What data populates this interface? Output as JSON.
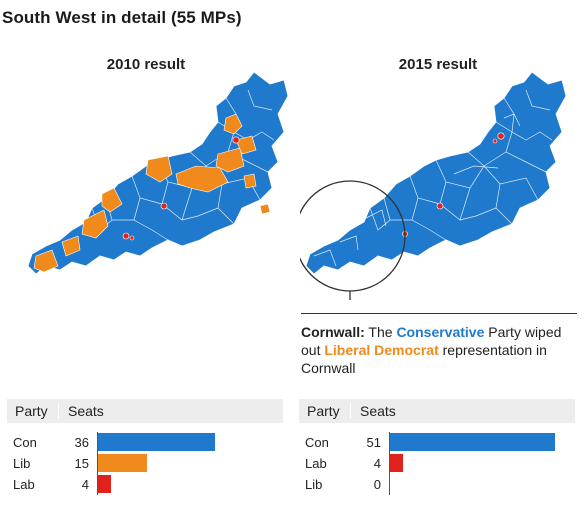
{
  "title": "South West in detail (55 MPs)",
  "maps": [
    {
      "heading": "2010 result"
    },
    {
      "heading": "2015 result"
    }
  ],
  "callout": {
    "bold": "Cornwall:",
    "t1": " The ",
    "con": "Conservative",
    "t2": " Party wiped out ",
    "lib": "Liberal Democrat",
    "t3": " representation in Cornwall"
  },
  "colors": {
    "con": "#1f7acd",
    "lib": "#f08a1c",
    "lab": "#e0221c"
  },
  "tables": [
    {
      "header": {
        "party": "Party",
        "seats": "Seats"
      },
      "rows": [
        {
          "party": "Con",
          "seats": 36,
          "color": "#1f7acd"
        },
        {
          "party": "Lib",
          "seats": 15,
          "color": "#f08a1c"
        },
        {
          "party": "Lab",
          "seats": 4,
          "color": "#e0221c"
        }
      ]
    },
    {
      "header": {
        "party": "Party",
        "seats": "Seats"
      },
      "rows": [
        {
          "party": "Con",
          "seats": 51,
          "color": "#1f7acd"
        },
        {
          "party": "Lab",
          "seats": 4,
          "color": "#e0221c"
        },
        {
          "party": "Lib",
          "seats": 0,
          "color": "#f08a1c"
        }
      ]
    }
  ]
}
